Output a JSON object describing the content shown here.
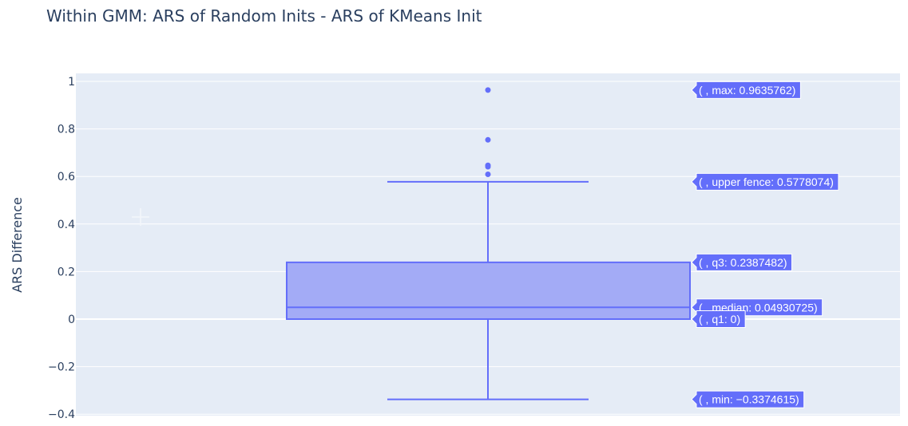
{
  "chart_data": {
    "type": "box",
    "title": "Within GMM: ARS of Random Inits - ARS of KMeans Init",
    "xlabel": "",
    "ylabel": "ARS Difference",
    "ylim": [
      -0.43,
      1.03
    ],
    "yticks": [
      {
        "value": 1,
        "label": "1"
      },
      {
        "value": 0.8,
        "label": "0.8"
      },
      {
        "value": 0.6,
        "label": "0.6"
      },
      {
        "value": 0.4,
        "label": "0.4"
      },
      {
        "value": 0.2,
        "label": "0.2"
      },
      {
        "value": 0,
        "label": "0"
      },
      {
        "value": -0.2,
        "label": "−0.2"
      },
      {
        "value": -0.4,
        "label": "−0.4"
      }
    ],
    "grid": true,
    "stats": {
      "min": -0.3374615,
      "q1": 0,
      "median": 0.04930725,
      "q3": 0.2387482,
      "upper_fence": 0.5778074,
      "max": 0.9635762
    },
    "outliers": [
      0.9635762,
      0.754,
      0.647,
      0.641,
      0.609
    ],
    "hover_labels": [
      {
        "key": "max",
        "value": 0.9635762,
        "text": "( , max: 0.9635762)"
      },
      {
        "key": "upper_fence",
        "value": 0.5778074,
        "text": "( , upper fence: 0.5778074)"
      },
      {
        "key": "q3",
        "value": 0.2387482,
        "text": "( , q3: 0.2387482)"
      },
      {
        "key": "median",
        "value": 0.04930725,
        "text": "( , median: 0.04930725)"
      },
      {
        "key": "q1",
        "value": 0,
        "text": "( , q1: 0)"
      },
      {
        "key": "min",
        "value": -0.3374615,
        "text": "( , min: −0.3374615)"
      }
    ],
    "colors": {
      "box_line": "#636efa",
      "box_fill": "#a3abf6",
      "plot_bg": "#e5ecf6",
      "grid": "#ffffff",
      "text": "#2a3f5f"
    }
  }
}
